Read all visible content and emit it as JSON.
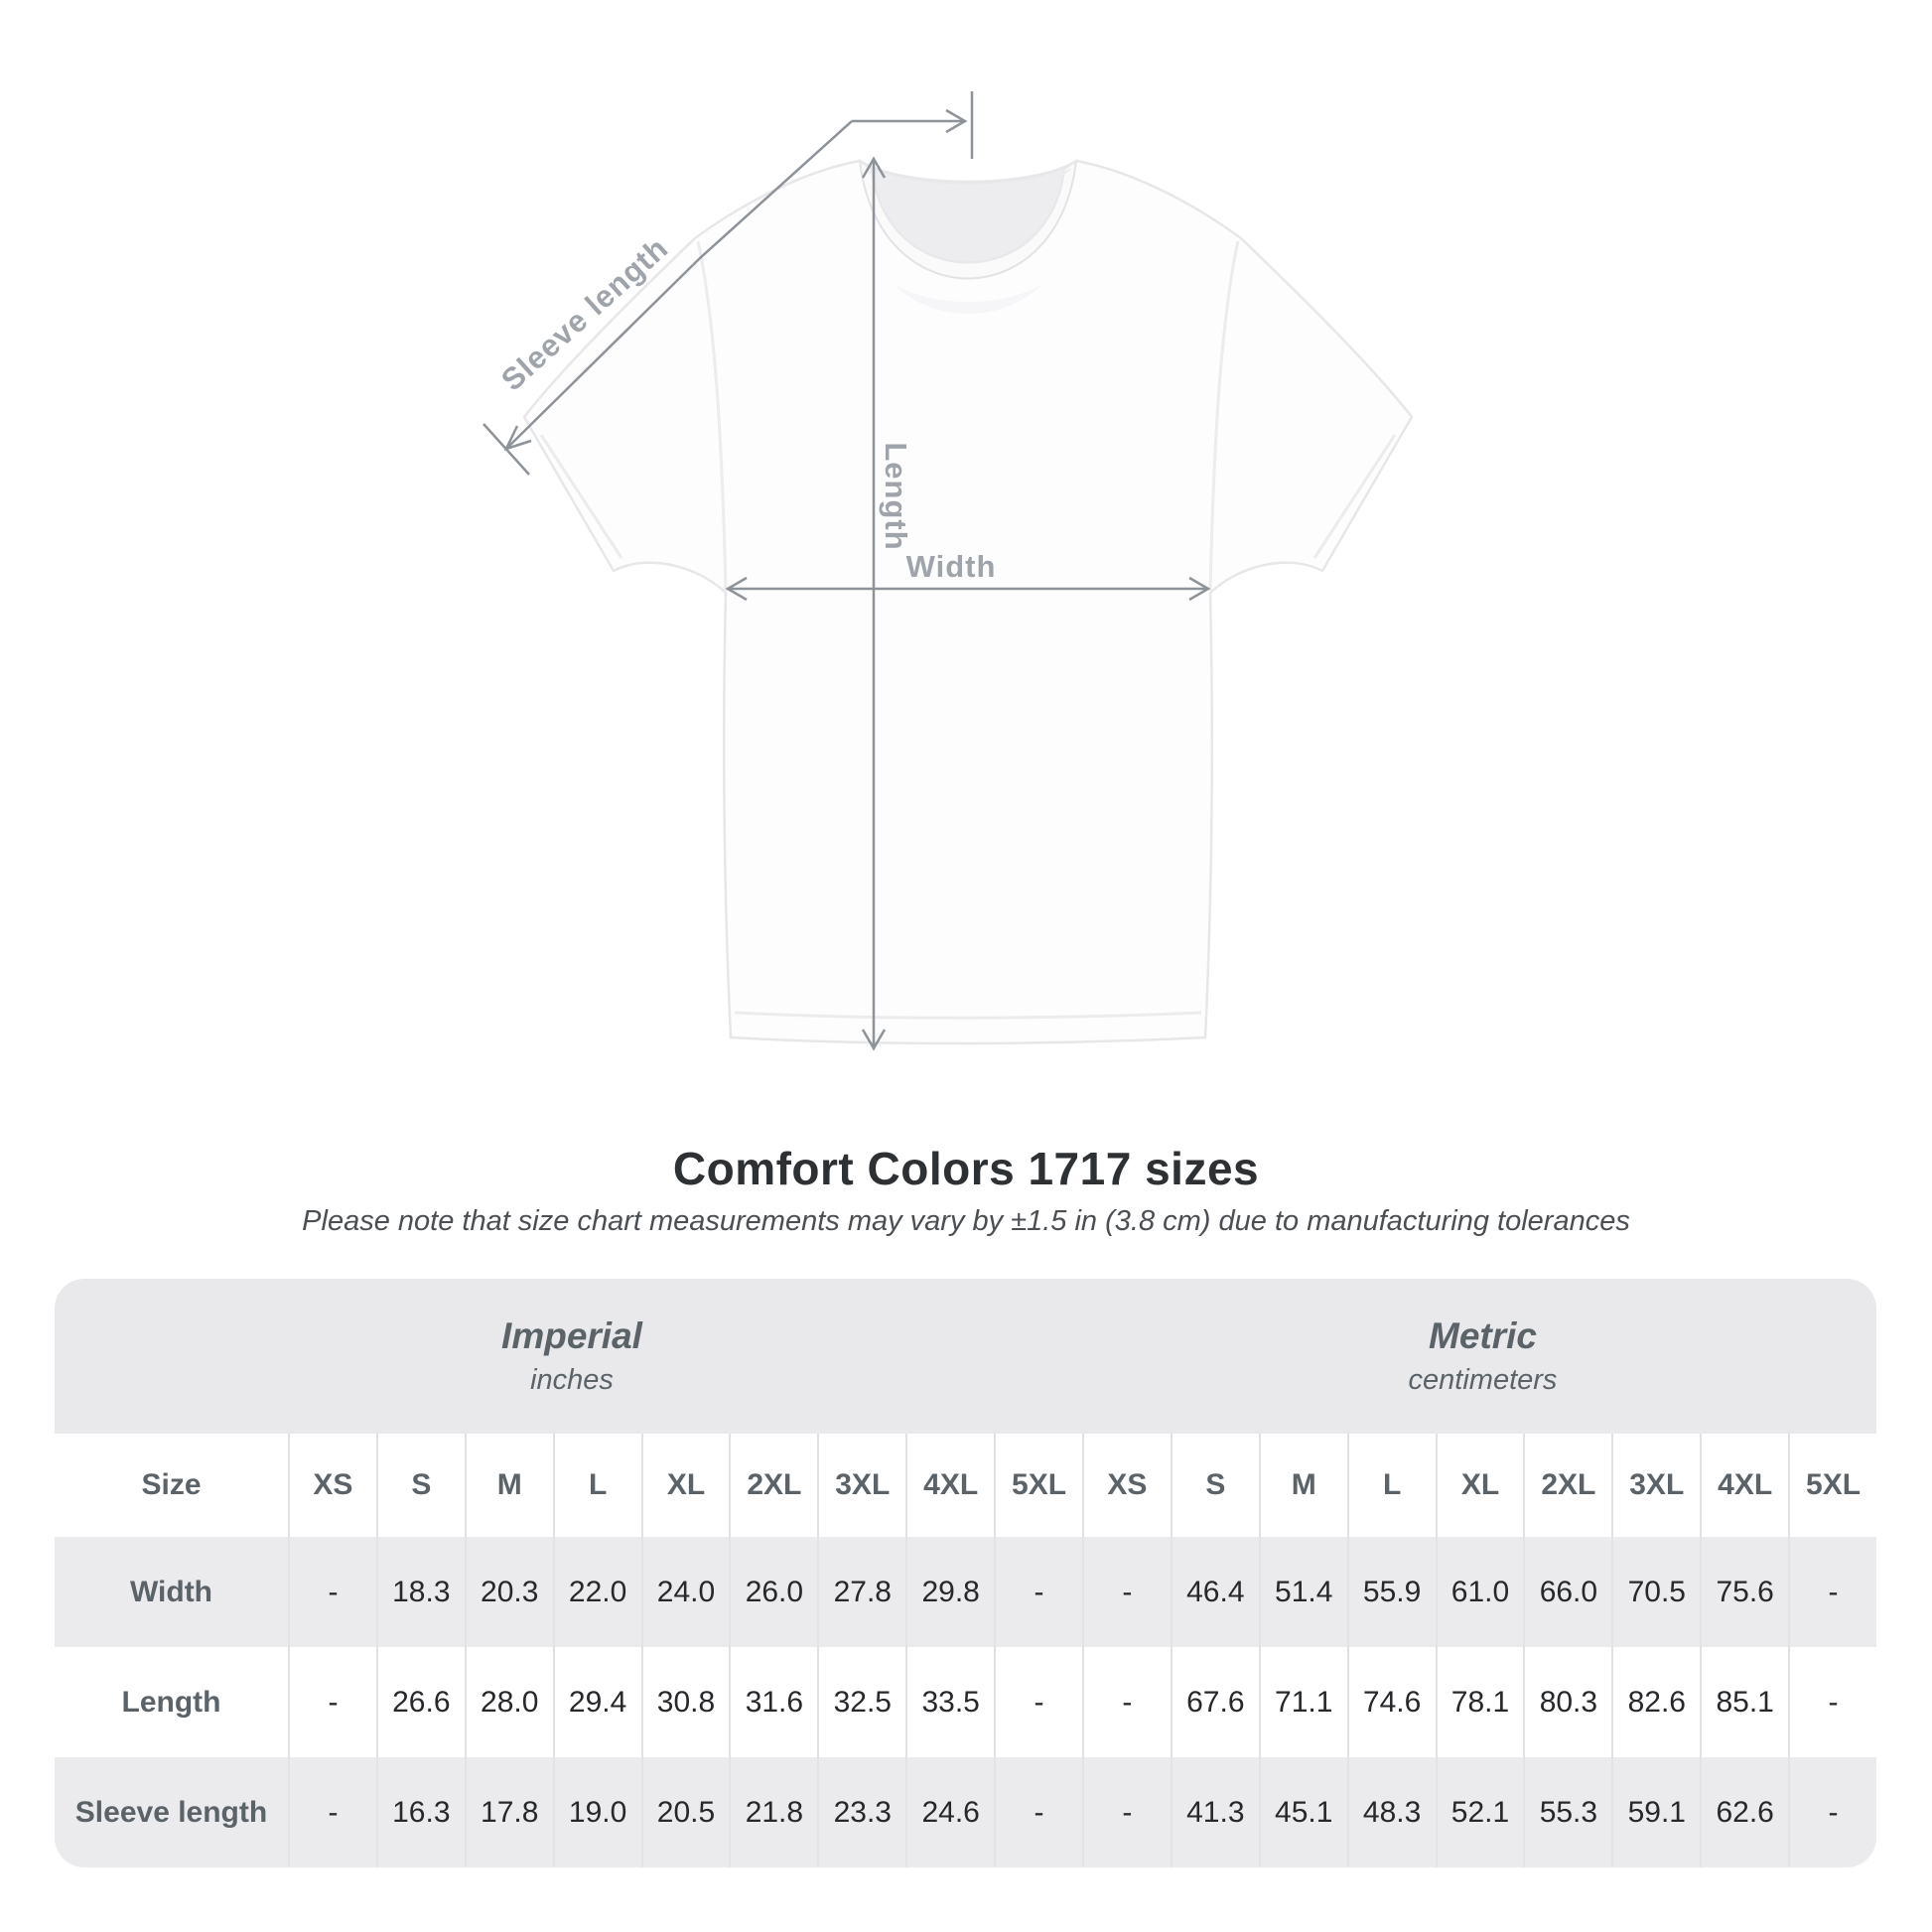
{
  "header": {
    "title": "Comfort Colors 1717 sizes",
    "subtitle": "Please note that size chart measurements may vary by ±1.5 in (3.8 cm) due to manufacturing tolerances"
  },
  "diagram": {
    "sleeve_length_label": "Sleeve length",
    "length_label": "Length",
    "width_label": "Width"
  },
  "chart_data": {
    "type": "table",
    "title": "Comfort Colors 1717 sizes",
    "corner_label": "Size",
    "sizes": [
      "XS",
      "S",
      "M",
      "L",
      "XL",
      "2XL",
      "3XL",
      "4XL",
      "5XL"
    ],
    "unit_groups": [
      {
        "label": "Imperial",
        "unit": "inches"
      },
      {
        "label": "Metric",
        "unit": "centimeters"
      }
    ],
    "rows": [
      {
        "label": "Width",
        "imperial": [
          "-",
          "18.3",
          "20.3",
          "22.0",
          "24.0",
          "26.0",
          "27.8",
          "29.8",
          "-"
        ],
        "metric": [
          "-",
          "46.4",
          "51.4",
          "55.9",
          "61.0",
          "66.0",
          "70.5",
          "75.6",
          "-"
        ]
      },
      {
        "label": "Length",
        "imperial": [
          "-",
          "26.6",
          "28.0",
          "29.4",
          "30.8",
          "31.6",
          "32.5",
          "33.5",
          "-"
        ],
        "metric": [
          "-",
          "67.6",
          "71.1",
          "74.6",
          "78.1",
          "80.3",
          "82.6",
          "85.1",
          "-"
        ]
      },
      {
        "label": "Sleeve length",
        "imperial": [
          "-",
          "16.3",
          "17.8",
          "19.0",
          "20.5",
          "21.8",
          "23.3",
          "24.6",
          "-"
        ],
        "metric": [
          "-",
          "41.3",
          "45.1",
          "48.3",
          "52.1",
          "55.3",
          "59.1",
          "62.6",
          "-"
        ]
      }
    ]
  },
  "colors": {
    "row_stripe": "#ebebed",
    "band_background": "#e9e9eb",
    "separator": "#e1e1e4",
    "heading_text": "#5b6369",
    "value_text": "#26282b",
    "title_text": "#2e3134",
    "subtitle_text": "#4b4f54",
    "annotation_line": "#8d9398",
    "annotation_label": "#9ea4a9"
  }
}
